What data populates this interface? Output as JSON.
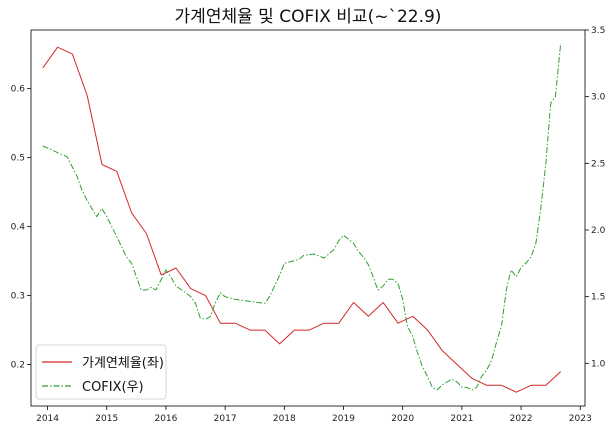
{
  "chart_data": {
    "type": "line",
    "title": "가계연체율 및 COFIX 비교(~`22.9)",
    "x_ticks": [
      "2014",
      "2015",
      "2016",
      "2017",
      "2018",
      "2019",
      "2020",
      "2021",
      "2022",
      "2023"
    ],
    "xlim": [
      2013.72,
      2023.08
    ],
    "left_axis": {
      "ylim": [
        0.14,
        0.685
      ],
      "ticks": [
        "0.2",
        "0.3",
        "0.4",
        "0.5",
        "0.6"
      ]
    },
    "right_axis": {
      "ylim": [
        0.68,
        3.5
      ],
      "ticks": [
        "1.0",
        "1.5",
        "2.0",
        "2.5",
        "3.0",
        "3.5"
      ]
    },
    "legend": {
      "position": "bottom-left"
    },
    "series": [
      {
        "name": "가계연체율(좌)",
        "axis": "left",
        "color": "#d62728",
        "style": "solid",
        "x": [
          2013.92,
          2014.17,
          2014.42,
          2014.67,
          2014.92,
          2015.17,
          2015.42,
          2015.67,
          2015.92,
          2016.17,
          2016.42,
          2016.67,
          2016.92,
          2017.17,
          2017.42,
          2017.67,
          2017.92,
          2018.17,
          2018.42,
          2018.67,
          2018.92,
          2019.17,
          2019.42,
          2019.67,
          2019.92,
          2020.17,
          2020.42,
          2020.67,
          2020.92,
          2021.17,
          2021.42,
          2021.67,
          2021.92,
          2022.17,
          2022.42,
          2022.67
        ],
        "y": [
          0.63,
          0.66,
          0.65,
          0.59,
          0.49,
          0.48,
          0.42,
          0.39,
          0.33,
          0.34,
          0.31,
          0.3,
          0.26,
          0.26,
          0.25,
          0.25,
          0.23,
          0.25,
          0.25,
          0.26,
          0.26,
          0.29,
          0.27,
          0.29,
          0.26,
          0.27,
          0.25,
          0.22,
          0.2,
          0.18,
          0.17,
          0.17,
          0.16,
          0.17,
          0.17,
          0.19
        ]
      },
      {
        "name": "COFIX(우)",
        "axis": "right",
        "color": "#2ca02c",
        "style": "dashdot",
        "x": [
          2013.92,
          2014.08,
          2014.17,
          2014.33,
          2014.5,
          2014.58,
          2014.67,
          2014.83,
          2014.92,
          2015.0,
          2015.17,
          2015.33,
          2015.42,
          2015.5,
          2015.58,
          2015.67,
          2015.75,
          2015.83,
          2016.0,
          2016.08,
          2016.17,
          2016.33,
          2016.42,
          2016.5,
          2016.58,
          2016.67,
          2016.75,
          2016.83,
          2016.92,
          2017.0,
          2017.17,
          2017.33,
          2017.5,
          2017.67,
          2017.75,
          2017.92,
          2018.0,
          2018.17,
          2018.25,
          2018.33,
          2018.5,
          2018.67,
          2018.83,
          2018.92,
          2019.0,
          2019.17,
          2019.25,
          2019.33,
          2019.42,
          2019.5,
          2019.58,
          2019.67,
          2019.75,
          2019.83,
          2019.92,
          2020.0,
          2020.08,
          2020.17,
          2020.25,
          2020.33,
          2020.42,
          2020.5,
          2020.58,
          2020.67,
          2020.75,
          2020.83,
          2020.92,
          2021.0,
          2021.08,
          2021.17,
          2021.25,
          2021.33,
          2021.42,
          2021.5,
          2021.58,
          2021.67,
          2021.75,
          2021.83,
          2021.92,
          2022.0,
          2022.08,
          2022.17,
          2022.25,
          2022.33,
          2022.42,
          2022.5,
          2022.58,
          2022.67
        ],
        "y": [
          2.63,
          2.6,
          2.58,
          2.55,
          2.4,
          2.3,
          2.22,
          2.1,
          2.16,
          2.1,
          1.95,
          1.8,
          1.75,
          1.65,
          1.55,
          1.55,
          1.57,
          1.55,
          1.7,
          1.65,
          1.58,
          1.53,
          1.5,
          1.45,
          1.34,
          1.33,
          1.35,
          1.45,
          1.53,
          1.5,
          1.48,
          1.47,
          1.46,
          1.45,
          1.5,
          1.66,
          1.75,
          1.77,
          1.78,
          1.81,
          1.82,
          1.79,
          1.85,
          1.92,
          1.96,
          1.9,
          1.84,
          1.8,
          1.74,
          1.65,
          1.55,
          1.58,
          1.63,
          1.63,
          1.6,
          1.48,
          1.28,
          1.2,
          1.08,
          0.98,
          0.9,
          0.82,
          0.8,
          0.84,
          0.86,
          0.88,
          0.86,
          0.82,
          0.82,
          0.8,
          0.82,
          0.9,
          0.95,
          1.02,
          1.15,
          1.28,
          1.55,
          1.7,
          1.65,
          1.72,
          1.75,
          1.8,
          1.9,
          2.15,
          2.5,
          2.95,
          3.0,
          3.4
        ]
      }
    ]
  }
}
